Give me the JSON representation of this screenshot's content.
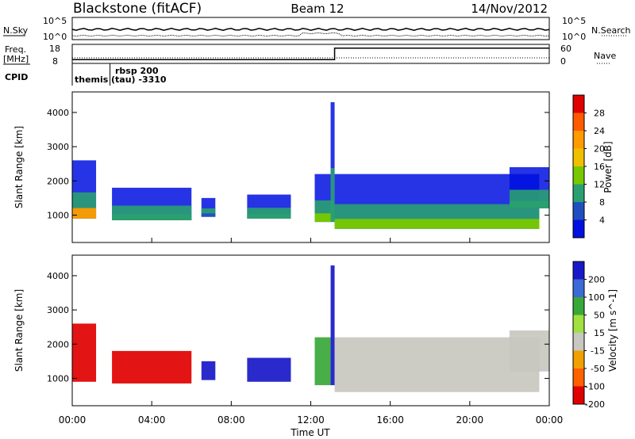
{
  "header": {
    "station": "Blackstone (fitACF)",
    "beam": "Beam 12",
    "date": "14/Nov/2012"
  },
  "noise_panel": {
    "left_label": "N.Sky",
    "right_label": "N.Search",
    "ytick_top": "10^5",
    "ytick_bottom": "10^0"
  },
  "freq_panel": {
    "left_label_line1": "Freq.",
    "left_label_line2": "[MHz]",
    "right_label": "Nave",
    "ytick_top_left": "18",
    "ytick_bottom_left": "8",
    "ytick_top_right": "60",
    "ytick_bottom_right": "0"
  },
  "cpid_panel": {
    "label": "CPID",
    "segments": [
      {
        "name": "themis",
        "line1": "themis",
        "line2": ""
      },
      {
        "name": "rbsp",
        "line1": "rbsp 200",
        "line2": "(tau) -3310"
      }
    ]
  },
  "power_panel": {
    "ylabel": "Slant Range [km]",
    "colorbar_label": "Power [dB]",
    "colorbar_ticks": [
      "28",
      "24",
      "20",
      "16",
      "12",
      "8",
      "4"
    ]
  },
  "velocity_panel": {
    "ylabel": "Slant Range [km]",
    "colorbar_label": "Velocity [m s^-1]",
    "colorbar_ticks": [
      "200",
      "100",
      "50",
      "15",
      "-15",
      "-50",
      "-100",
      "-200"
    ]
  },
  "xaxis": {
    "label": "Time UT",
    "ticks": [
      "00:00",
      "04:00",
      "08:00",
      "12:00",
      "16:00",
      "20:00",
      "00:00"
    ]
  },
  "chart_data": {
    "type": "heatmap",
    "x_range_hours": [
      0,
      24
    ],
    "y_range_km": [
      200,
      4600
    ],
    "yticks_km": [
      1000,
      2000,
      3000,
      4000
    ],
    "freq_mhz": {
      "before": 10,
      "after": 16,
      "switch_hour": 13.2
    },
    "cpid_switch_hour": 1.9,
    "power_colors": [
      "#e00000",
      "#ff5a00",
      "#ff9a00",
      "#f0c000",
      "#78c800",
      "#2aa070",
      "#2050c0",
      "#0010e0"
    ],
    "velocity_colors": [
      "#1818c8",
      "#3c6ad8",
      "#38a838",
      "#a0e040",
      "#c8c8c0",
      "#f0a000",
      "#ff6000",
      "#e00000"
    ],
    "echo_regions": [
      {
        "t_start": 0.0,
        "t_end": 1.2,
        "r_low_km": 900,
        "r_high_km": 2600,
        "power_db": 20,
        "velocity": -150
      },
      {
        "t_start": 2.0,
        "t_end": 6.0,
        "r_low_km": 850,
        "r_high_km": 1800,
        "power_db": 10,
        "velocity": -200
      },
      {
        "t_start": 6.5,
        "t_end": 7.2,
        "r_low_km": 950,
        "r_high_km": 1500,
        "power_db": 6,
        "velocity": 200
      },
      {
        "t_start": 8.8,
        "t_end": 11.0,
        "r_low_km": 900,
        "r_high_km": 1600,
        "power_db": 10,
        "velocity": 200
      },
      {
        "t_start": 12.2,
        "t_end": 13.0,
        "r_low_km": 800,
        "r_high_km": 2200,
        "power_db": 14,
        "velocity": 40
      },
      {
        "t_start": 13.0,
        "t_end": 13.2,
        "r_low_km": 800,
        "r_high_km": 4300,
        "power_db": 8,
        "velocity": 200
      },
      {
        "t_start": 13.2,
        "t_end": 23.5,
        "r_low_km": 600,
        "r_high_km": 2200,
        "power_db": 12,
        "velocity": 0
      },
      {
        "t_start": 22.0,
        "t_end": 24.0,
        "r_low_km": 1200,
        "r_high_km": 2400,
        "power_db": 8,
        "velocity": 0
      }
    ]
  }
}
